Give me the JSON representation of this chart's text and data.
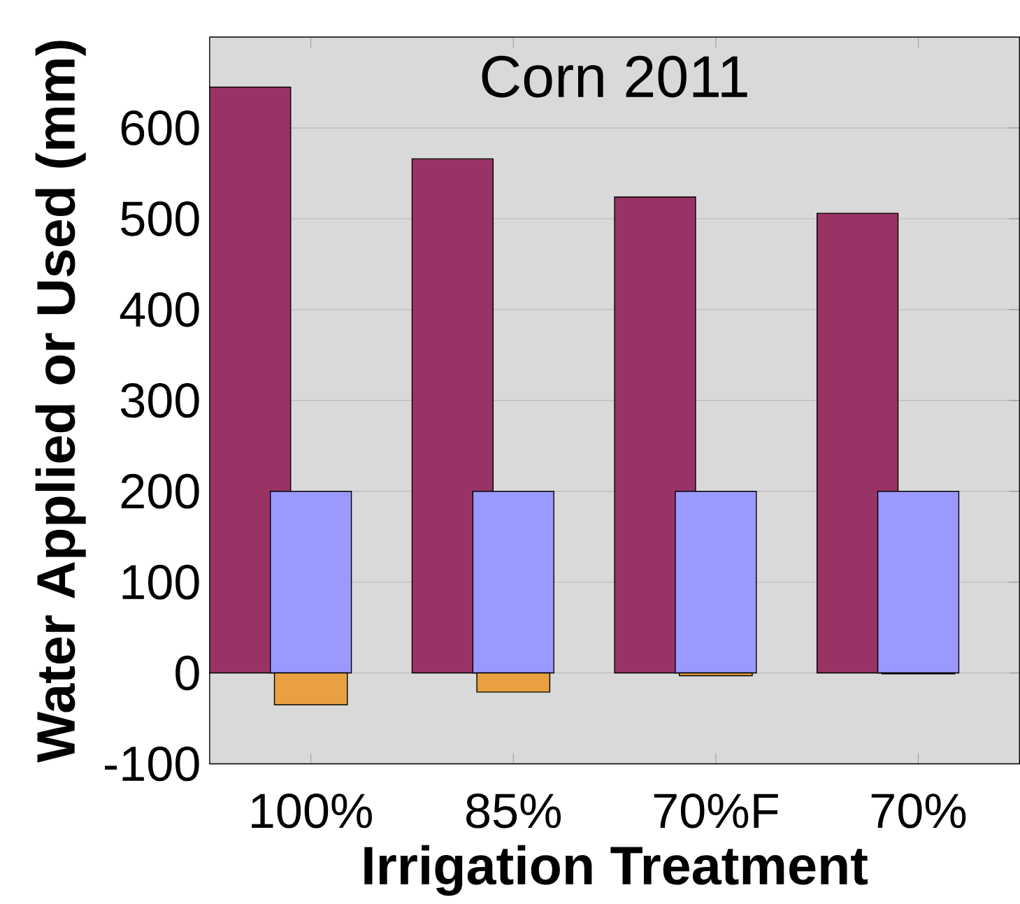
{
  "chart_data": {
    "type": "bar",
    "title": "Corn 2011",
    "xlabel": "Irrigation Treatment",
    "ylabel": "Water Applied or Used (mm)",
    "categories": [
      "100%",
      "85%",
      "70%F",
      "70%"
    ],
    "series": [
      {
        "color": "#993366",
        "values": [
          645,
          566,
          524,
          506
        ]
      },
      {
        "color": "#9999ff",
        "values": [
          200,
          200,
          200,
          200
        ]
      },
      {
        "color": "#e8a040",
        "values": [
          -35,
          -21,
          -3,
          -1
        ]
      }
    ],
    "ylim": [
      -100,
      700
    ],
    "yticks": [
      -100,
      0,
      100,
      200,
      300,
      400,
      500,
      600
    ],
    "grid": "y"
  }
}
